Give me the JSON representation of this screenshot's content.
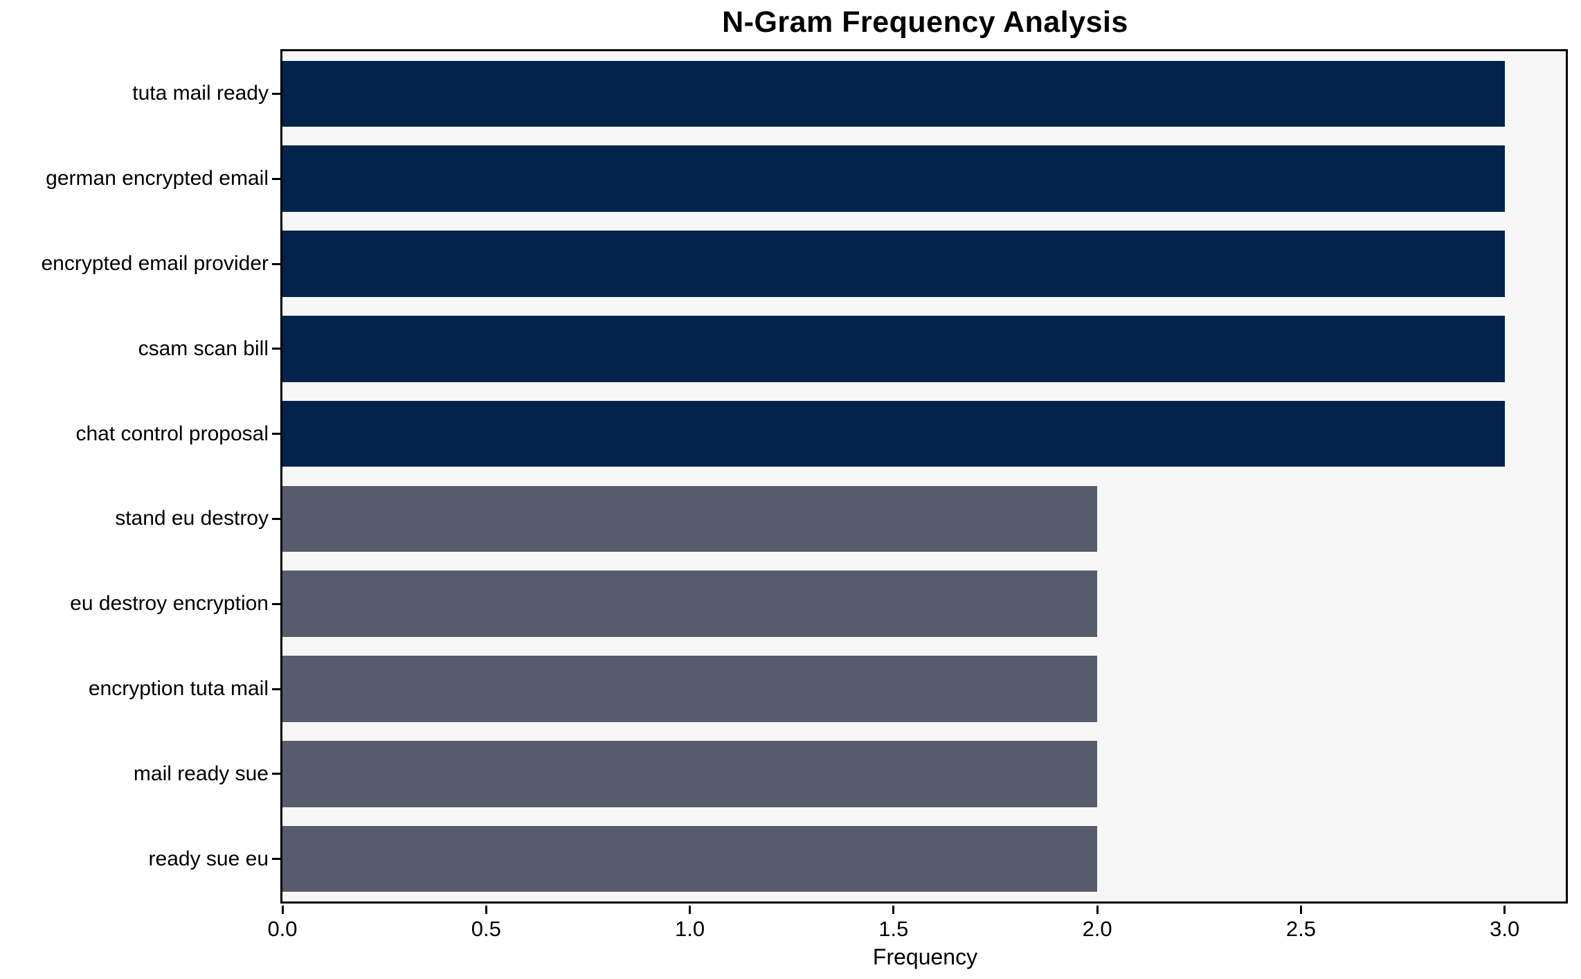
{
  "chart_data": {
    "type": "bar",
    "orientation": "horizontal",
    "title": "N-Gram Frequency Analysis",
    "xlabel": "Frequency",
    "ylabel": "",
    "categories": [
      "tuta mail ready",
      "german encrypted email",
      "encrypted email provider",
      "csam scan bill",
      "chat control proposal",
      "stand eu destroy",
      "eu destroy encryption",
      "encryption tuta mail",
      "mail ready sue",
      "ready sue eu"
    ],
    "values": [
      3,
      3,
      3,
      3,
      3,
      2,
      2,
      2,
      2,
      2
    ],
    "bar_colors": [
      "#03234d",
      "#03234d",
      "#03234d",
      "#03234d",
      "#03234d",
      "#565c6b",
      "#565c6b",
      "#565c6b",
      "#565c6b",
      "#565c6b"
    ],
    "xlim": [
      0,
      3.15
    ],
    "x_tick_values": [
      0,
      0.5,
      1,
      1.5,
      2,
      2.5,
      3
    ],
    "x_tick_labels": [
      "0.0",
      "0.5",
      "1.0",
      "1.5",
      "2.0",
      "2.5",
      "3.0"
    ],
    "grid": false,
    "legend": null,
    "plot_background": "#f7f7f7",
    "spine_color": "#000000",
    "bar_height_fraction": 0.78
  }
}
